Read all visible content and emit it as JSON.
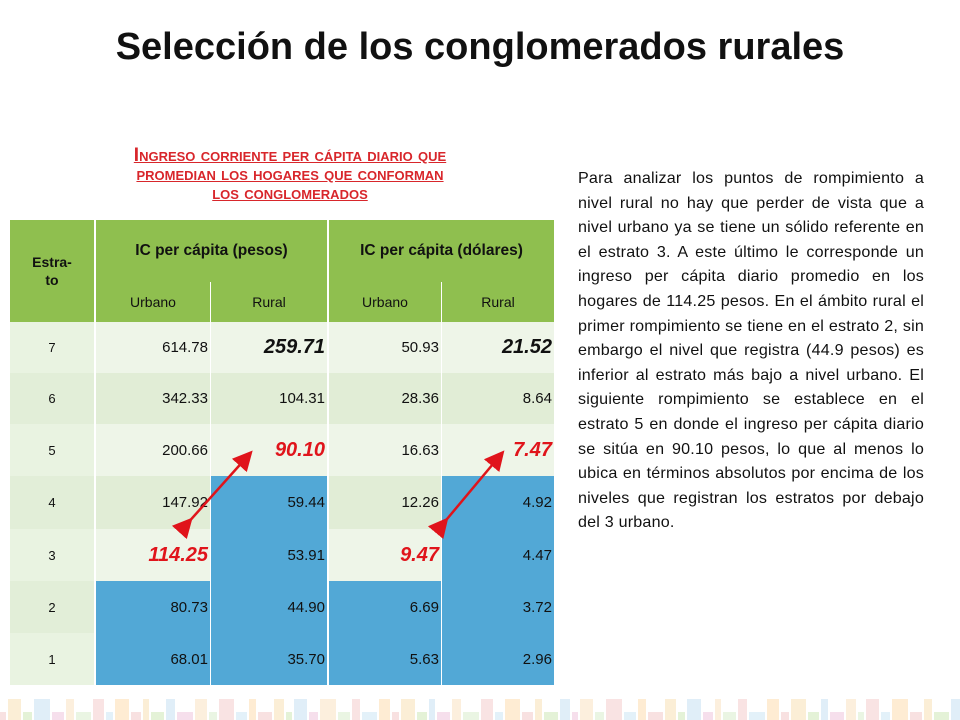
{
  "title": "Selección de los conglomerados rurales",
  "subtitle": {
    "line1": "Ingreso corriente per cápita diario que",
    "line2": "promedian los hogares que conforman",
    "line3": "los conglomerados"
  },
  "paragraph": "Para analizar los puntos de rompimiento a nivel rural no hay que perder de vista que a nivel urbano ya se tiene un sólido referente en el estrato 3. A este último le corresponde un ingreso per cápita diario promedio en los hogares de 114.25 pesos. En el ámbito rural el primer rompimiento se tiene en el estrato 2, sin embargo el nivel que registra (44.9 pesos) es inferior al estrato más bajo a nivel urbano. El siguiente rompimiento se establece en el estrato 5 en donde el ingreso per cápita diario se sitúa en 90.10 pesos, lo que al menos lo ubica en términos absolutos por encima de los niveles que registran los estratos por debajo del 3 urbano.",
  "table": {
    "estrato_header": "Estra-\nto",
    "group_pesos": "IC per cápita (pesos)",
    "group_dolares": "IC per cápita (dólares)",
    "sub_urbano": "Urbano",
    "sub_rural": "Rural",
    "rows": [
      {
        "estrato": "7",
        "pu": "614.78",
        "pr": "259.71",
        "du": "50.93",
        "dr": "21.52"
      },
      {
        "estrato": "6",
        "pu": "342.33",
        "pr": "104.31",
        "du": "28.36",
        "dr": "8.64"
      },
      {
        "estrato": "5",
        "pu": "200.66",
        "pr": "90.10",
        "du": "16.63",
        "dr": "7.47"
      },
      {
        "estrato": "4",
        "pu": "147.92",
        "pr": "59.44",
        "du": "12.26",
        "dr": "4.92"
      },
      {
        "estrato": "3",
        "pu": "114.25",
        "pr": "53.91",
        "du": "9.47",
        "dr": "4.47"
      },
      {
        "estrato": "2",
        "pu": "80.73",
        "pr": "44.90",
        "du": "6.69",
        "dr": "3.72"
      },
      {
        "estrato": "1",
        "pu": "68.01",
        "pr": "35.70",
        "du": "5.63",
        "dr": "2.96"
      }
    ]
  },
  "colors": {
    "header_green": "#8fbf4f",
    "highlight_blue": "#52a8d6",
    "highlight_red": "#e0141b"
  }
}
